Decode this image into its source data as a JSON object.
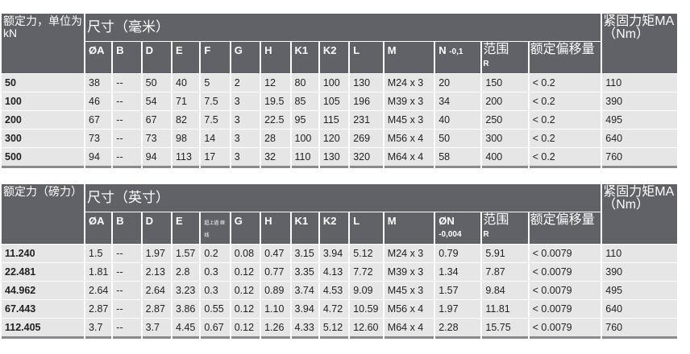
{
  "metric": {
    "rated_force_label": "额定力，单位为kN",
    "dims_label": "尺寸（毫米）",
    "torque_label": "紧固力矩MA（Nm）",
    "columns": [
      "ØA",
      "B",
      "D",
      "E",
      "F",
      "G",
      "H",
      "K1",
      "K2",
      "L",
      "M"
    ],
    "n_label": "N",
    "n_tol": "-0,1",
    "range_label": "范围",
    "range_sub": "R",
    "offset_label": "额定偏移量",
    "rows": [
      [
        "50",
        "38",
        "--",
        "50",
        "40",
        "5",
        "2",
        "12",
        "80",
        "100",
        "130",
        "M24 x 3",
        "20",
        "150",
        "< 0.2",
        "110"
      ],
      [
        "100",
        "46",
        "--",
        "54",
        "71",
        "7.5",
        "3",
        "19.5",
        "85",
        "105",
        "196",
        "M39 x 3",
        "34",
        "200",
        "< 0.2",
        "390"
      ],
      [
        "200",
        "67",
        "--",
        "67",
        "82",
        "7.5",
        "3",
        "22.5",
        "95",
        "115",
        "231",
        "M45 x 3",
        "40",
        "250",
        "< 0.2",
        "495"
      ],
      [
        "300",
        "73",
        "--",
        "73",
        "98",
        "14",
        "3",
        "28",
        "100",
        "120",
        "269",
        "M56 x 4",
        "50",
        "300",
        "< 0.2",
        "640"
      ],
      [
        "500",
        "94",
        "--",
        "94",
        "113",
        "17",
        "3",
        "32",
        "110",
        "130",
        "320",
        "M64 x 4",
        "58",
        "400",
        "< 0.2",
        "760"
      ]
    ]
  },
  "imperial": {
    "rated_force_label": "额定力（磅力）",
    "dims_label": "尺寸（英寸）",
    "torque_label": "紧固力矩MA（Nm）",
    "columns": [
      "ØA",
      "B",
      "D",
      "E",
      "超上過 继线",
      "G",
      "H",
      "K1",
      "K2",
      "L",
      "M"
    ],
    "n_label": "ØN",
    "n_tol": "-0,004",
    "range_label": "范围",
    "range_sub": "R",
    "offset_label": "额定偏移量",
    "rows": [
      [
        "11.240",
        "1.5",
        "--",
        "1.97",
        "1.57",
        "0.2",
        "0.08",
        "0.47",
        "3.15",
        "3.94",
        "5.12",
        "M24 x 3",
        "0.79",
        "5.91",
        "< 0.0079",
        "110"
      ],
      [
        "22.481",
        "1.81",
        "--",
        "2.13",
        "2.8",
        "0.3",
        "0.12",
        "0.77",
        "3.35",
        "4.13",
        "7.72",
        "M39 x 3",
        "1.34",
        "7.87",
        "< 0.0079",
        "390"
      ],
      [
        "44.962",
        "2.64",
        "--",
        "2.64",
        "3.23",
        "0.3",
        "0.12",
        "0.89",
        "3.74",
        "4.53",
        "9.09",
        "M45 x 3",
        "1.57",
        "9.84",
        "< 0.0079",
        "495"
      ],
      [
        "67.443",
        "2.87",
        "--",
        "2.87",
        "3.86",
        "0.55",
        "0.12",
        "1.10",
        "3.94",
        "4.72",
        "10.59",
        "M56 x 4",
        "1.97",
        "11.81",
        "< 0.0079",
        "640"
      ],
      [
        "112.405",
        "3.7",
        "--",
        "3.7",
        "4.45",
        "0.67",
        "0.12",
        "1.26",
        "4.33",
        "5.12",
        "12.60",
        "M64 x 4",
        "2.28",
        "15.75",
        "< 0.0079",
        "760"
      ]
    ]
  }
}
